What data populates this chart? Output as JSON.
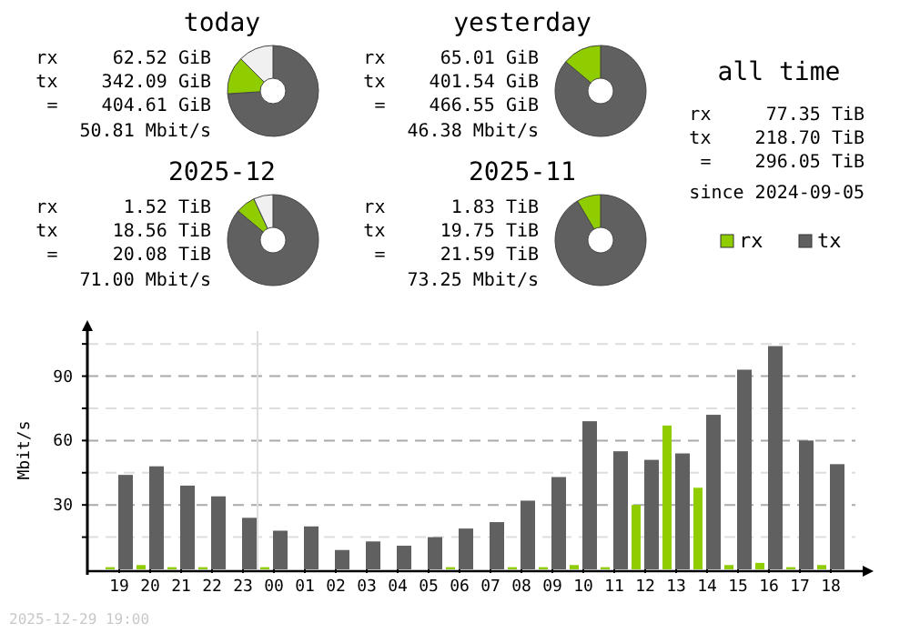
{
  "chart_data": [
    {
      "type": "donut",
      "title": "today",
      "categories": [
        null,
        null,
        null
      ],
      "values": [
        13.5,
        74,
        12.5
      ],
      "colors": [
        "#8fcc00",
        "#606060",
        "#f0f0f0"
      ],
      "annotations": [
        "rx     62.52 GiB",
        "tx    342.09 GiB",
        " =    404.61 GiB",
        "50.81 Mbit/s"
      ]
    },
    {
      "type": "donut",
      "title": "yesterday",
      "categories": [
        null,
        null
      ],
      "values": [
        13.9,
        86.1
      ],
      "colors": [
        "#8fcc00",
        "#606060"
      ],
      "annotations": [
        "rx     65.01 GiB",
        "tx    401.54 GiB",
        " =    466.55 GiB",
        "46.38 Mbit/s"
      ]
    },
    {
      "type": "donut",
      "title": "2025-12",
      "categories": [
        null,
        null,
        null
      ],
      "values": [
        7,
        86.1,
        6.9
      ],
      "colors": [
        "#8fcc00",
        "#606060",
        "#f0f0f0"
      ],
      "annotations": [
        "rx      1.52 TiB",
        "tx     18.56 TiB",
        " =     20.08 TiB",
        "71.00 Mbit/s"
      ]
    },
    {
      "type": "donut",
      "title": "2025-11",
      "categories": [
        null,
        null
      ],
      "values": [
        8.5,
        91.5
      ],
      "colors": [
        "#8fcc00",
        "#606060"
      ],
      "annotations": [
        "rx      1.83 TiB",
        "tx     19.75 TiB",
        " =     21.59 TiB",
        "73.25 Mbit/s"
      ]
    },
    {
      "type": "other",
      "title": "all time",
      "annotations": [
        "rx     77.35 TiB",
        "tx    218.70 TiB",
        " =    296.05 TiB",
        "since 2024-09-05"
      ]
    },
    {
      "type": "bar",
      "ylabel": "Mbit/s",
      "categories": [
        "19",
        "20",
        "21",
        "22",
        "23",
        "00",
        "01",
        "02",
        "03",
        "04",
        "05",
        "06",
        "07",
        "08",
        "09",
        "10",
        "11",
        "12",
        "13",
        "14",
        "15",
        "16",
        "17",
        "18"
      ],
      "series": [
        {
          "name": "rx",
          "color": "#8fcc00",
          "values": [
            1,
            2,
            1,
            1,
            0,
            1,
            0,
            0,
            0,
            0,
            0,
            1,
            0,
            1,
            1,
            2,
            1,
            30,
            67,
            38,
            2,
            3,
            1,
            2
          ]
        },
        {
          "name": "tx",
          "color": "#606060",
          "values": [
            44,
            48,
            39,
            34,
            24,
            18,
            20,
            9,
            13,
            11,
            15,
            19,
            22,
            32,
            43,
            69,
            55,
            51,
            54,
            72,
            93,
            104,
            60,
            49
          ]
        }
      ],
      "ylim": [
        0,
        111
      ],
      "yticks": [
        {
          "value": 15,
          "label": null
        },
        30,
        {
          "value": 45,
          "label": null
        },
        60,
        {
          "value": 75,
          "label": null
        },
        90,
        {
          "value": 105,
          "label": null
        }
      ],
      "grid": "y",
      "legend": "top right",
      "line_style": "dashed",
      "ref_lines": [
        {
          "axis": "x",
          "value": "00",
          "color": "#dddddd"
        }
      ],
      "annotations": [
        "2025-12-29 19:00"
      ]
    }
  ]
}
